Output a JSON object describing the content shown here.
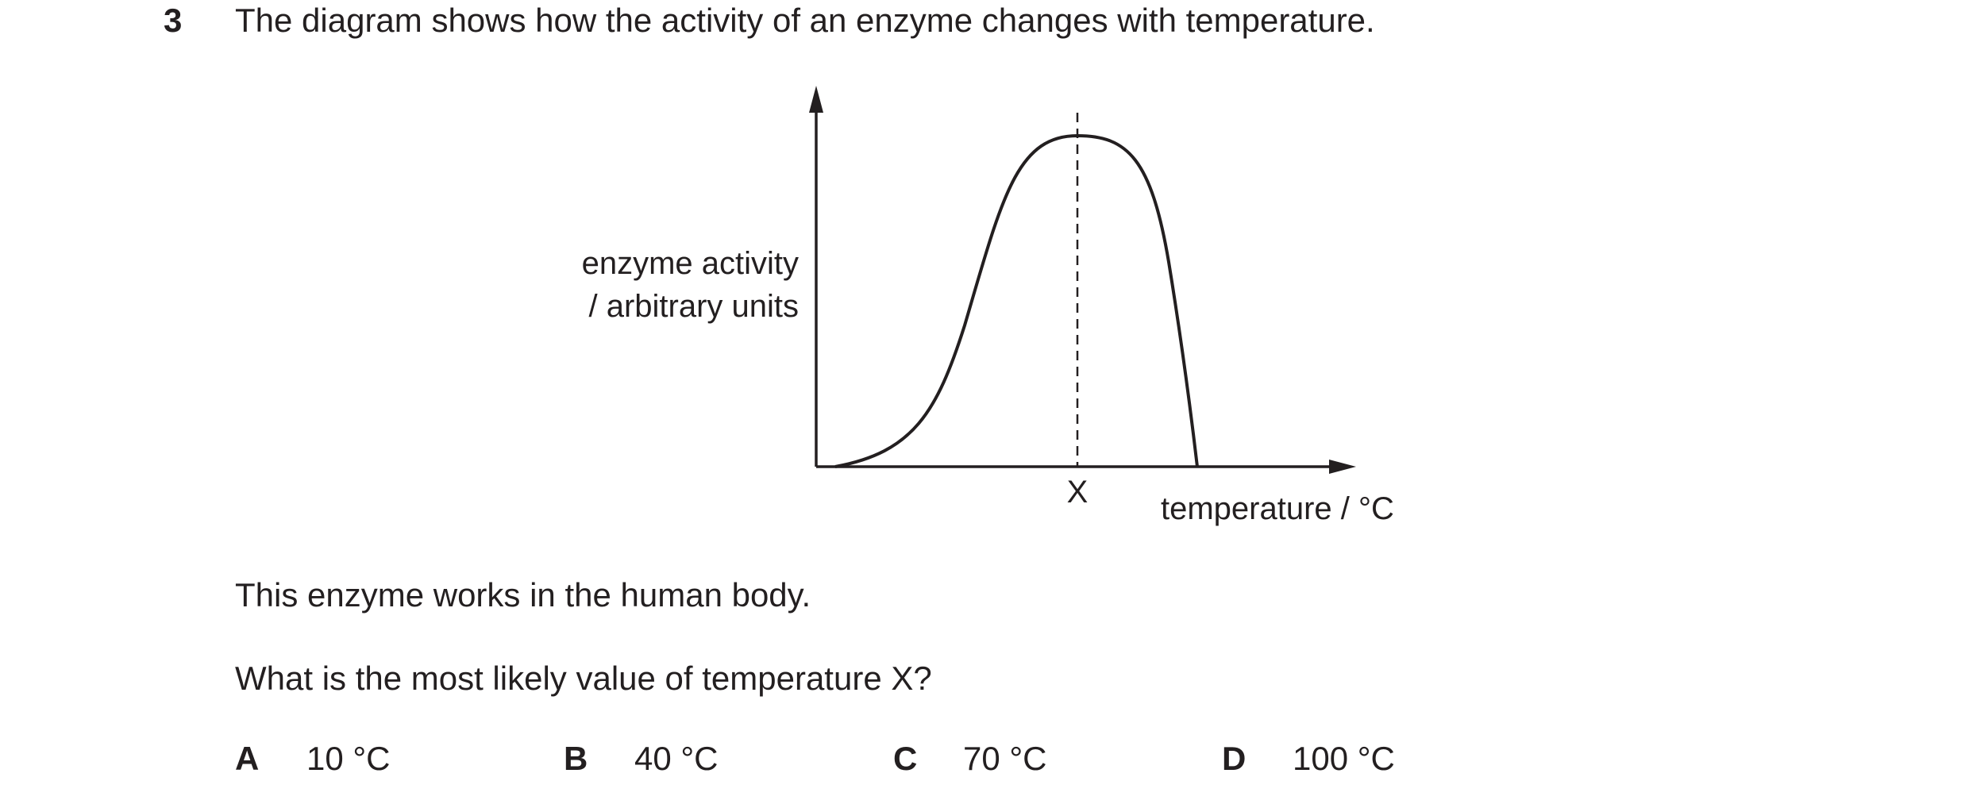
{
  "question": {
    "number": "3",
    "stem": "The diagram shows how the activity of an enzyme changes with temperature.",
    "diagram": {
      "y_label": [
        "enzyme activity",
        "/ arbitrary units"
      ],
      "x_label": "temperature / °C",
      "marker": "X"
    },
    "statement": "This enzyme works in the human body.",
    "prompt": "What is the most likely value of temperature X?",
    "options": [
      {
        "letter": "A",
        "text": "10 °C"
      },
      {
        "letter": "B",
        "text": "40 °C"
      },
      {
        "letter": "C",
        "text": "70 °C"
      },
      {
        "letter": "D",
        "text": "100 °C"
      }
    ]
  }
}
